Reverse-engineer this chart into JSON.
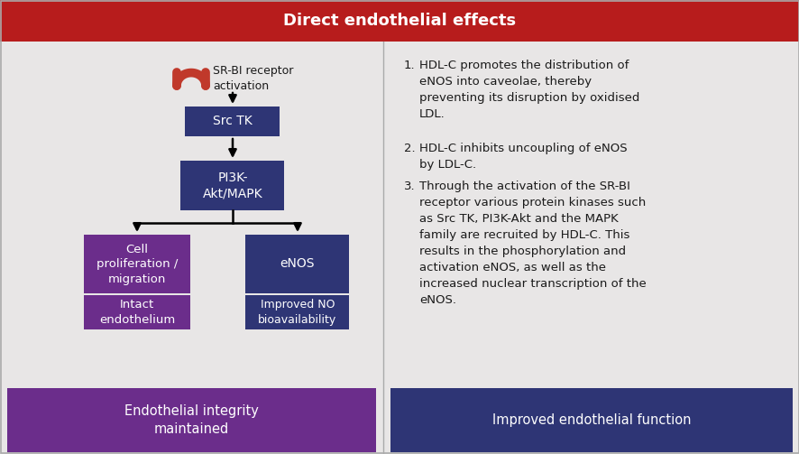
{
  "title": "Direct endothelial effects",
  "title_bg": "#b71c1c",
  "title_text_color": "#ffffff",
  "bg_color": "#e8e6e6",
  "dark_blue": "#2e3575",
  "purple": "#6b2d8b",
  "srbi_color": "#c0392b",
  "srbi_label": "SR-BI receptor\nactivation",
  "box1_label": "Src TK",
  "box2_label": "PI3K-\nAkt/MAPK",
  "box3_label": "Cell\nproliferation /\nmigration",
  "box4_label": "Intact\nendothelium",
  "box5_label": "eNOS",
  "box6_label": "Improved NO\nbioavailability",
  "bottom_left_label": "Endothelial integrity\nmaintained",
  "bottom_right_label": "Improved endothelial function",
  "item1": "HDL-C promotes the distribution of\neNOS into caveolae, thereby\npreventing its disruption by oxidised\nLDL.",
  "item2": "HDL-C inhibits uncoupling of eNOS\nby LDL-C.",
  "item3": "Through the activation of the SR-BI\nreceptor various protein kinases such\nas Src TK, PI3K-Akt and the MAPK\nfamily are recruited by HDL-C. This\nresults in the phosphorylation and\nactivation eNOS, as well as the\nincreased nuclear transcription of the\neNOS.",
  "white": "#ffffff",
  "black": "#1a1a1a",
  "border_color": "#aaaaaa",
  "divider_color": "#aaaaaa"
}
